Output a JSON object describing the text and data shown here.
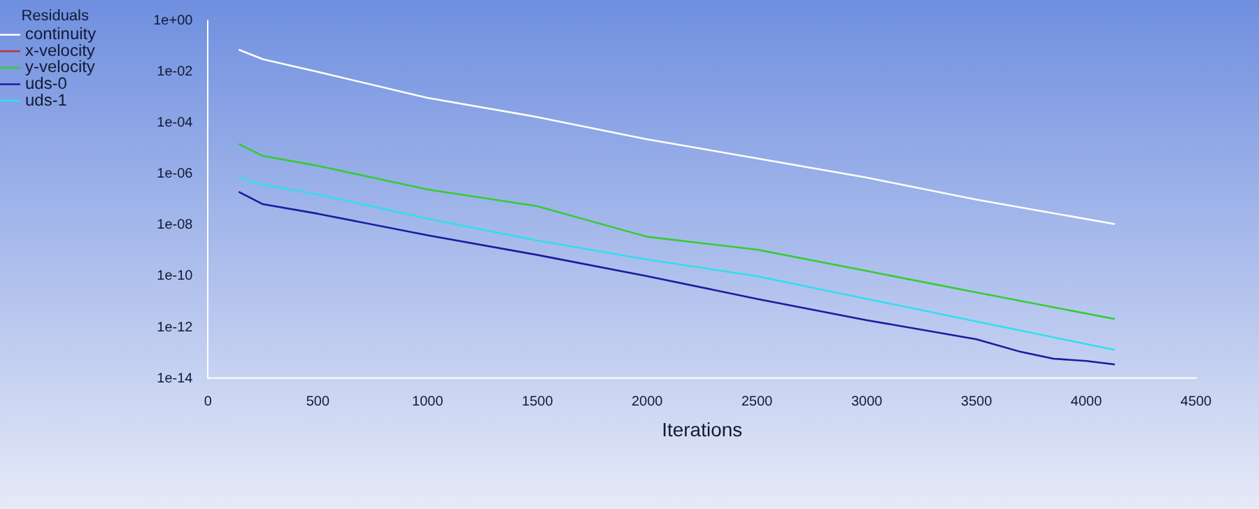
{
  "chart_data": {
    "type": "line",
    "xlabel": "Iterations",
    "legend_title": "Residuals",
    "legend": "top left",
    "log": "y",
    "grid": false,
    "marker": "none",
    "line_style": "solid",
    "x": [
      140,
      250,
      500,
      1000,
      1500,
      2000,
      2500,
      3000,
      3500,
      4130
    ],
    "xlim": [
      0,
      4500
    ],
    "xticks": [
      0,
      500,
      1000,
      1500,
      2000,
      2500,
      3000,
      3500,
      4000,
      4500
    ],
    "ylim": [
      1e-14,
      1
    ],
    "yticks": [
      {
        "value": 1,
        "label": "1e+00"
      },
      {
        "value": 0.01,
        "label": "1e-02"
      },
      {
        "value": 0.0001,
        "label": "1e-04"
      },
      {
        "value": 1e-06,
        "label": "1e-06"
      },
      {
        "value": 1e-08,
        "label": "1e-08"
      },
      {
        "value": 1e-10,
        "label": "1e-10"
      },
      {
        "value": 1e-12,
        "label": "1e-12"
      },
      {
        "value": 1e-14,
        "label": "1e-14"
      }
    ],
    "series": [
      {
        "name": "continuity",
        "color": "#ffffff",
        "values": [
          0.074,
          0.031,
          0.01,
          0.00095,
          0.00017,
          2.3e-05,
          4.1e-06,
          7.2e-07,
          1e-07,
          1.1e-08
        ]
      },
      {
        "name": "x-velocity",
        "color": "#c0304a",
        "values": [
          null,
          null,
          null,
          null,
          null,
          null,
          null,
          null,
          null,
          null
        ]
      },
      {
        "name": "y-velocity",
        "color": "#33cc33",
        "values": [
          1.5e-05,
          5.1e-06,
          2.1e-06,
          2.5e-07,
          5.5e-08,
          3.5e-09,
          1.1e-09,
          1.6e-10,
          2.3e-11,
          2.1e-12
        ]
      },
      {
        "name": "uds-0",
        "color": "#1a1aa0",
        "x": [
          140,
          250,
          500,
          1000,
          1500,
          2000,
          2500,
          3000,
          3500,
          3700,
          3850,
          4000,
          4130
        ],
        "values": [
          2e-07,
          6.6e-08,
          2.8e-08,
          4e-09,
          6.8e-10,
          1e-10,
          1.3e-11,
          1.9e-12,
          3.4e-13,
          1.1e-13,
          5.9e-14,
          4.8e-14,
          3.5e-14
        ]
      },
      {
        "name": "uds-1",
        "color": "#33ddee",
        "values": [
          7.2e-07,
          3.8e-07,
          1.6e-07,
          1.8e-08,
          2.5e-09,
          4.5e-10,
          1e-10,
          1.3e-11,
          1.7e-12,
          1.3e-13
        ]
      }
    ]
  }
}
